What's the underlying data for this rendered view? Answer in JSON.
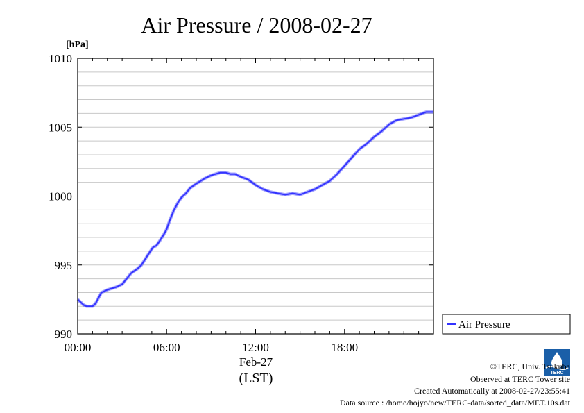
{
  "chart_data": {
    "type": "line",
    "title": "Air Pressure / 2008-02-27",
    "ylabel_unit": "[hPa]",
    "xlabel_date": "Feb-27",
    "xlabel_tz": "(LST)",
    "ylim": [
      990,
      1010
    ],
    "xlim_hours": [
      0,
      24
    ],
    "y_ticks": [
      "990",
      "995",
      "1000",
      "1005",
      "1010"
    ],
    "x_ticks": [
      "00:00",
      "06:00",
      "12:00",
      "18:00"
    ],
    "grid": true,
    "legend": {
      "placement": "right-outside",
      "entries": [
        "Air Pressure"
      ]
    },
    "series": [
      {
        "name": "Air Pressure",
        "color": "#3333ff",
        "x_hours": [
          0,
          0.2,
          0.4,
          0.6,
          0.8,
          1.0,
          1.2,
          1.4,
          1.6,
          1.8,
          2.0,
          2.3,
          2.6,
          3.0,
          3.3,
          3.6,
          4.0,
          4.3,
          4.6,
          4.9,
          5.1,
          5.3,
          5.5,
          5.8,
          6.0,
          6.2,
          6.5,
          6.8,
          7.0,
          7.3,
          7.6,
          8.0,
          8.3,
          8.6,
          9.0,
          9.3,
          9.6,
          10.0,
          10.3,
          10.6,
          11.0,
          11.5,
          12.0,
          12.5,
          13.0,
          13.5,
          14.0,
          14.5,
          15.0,
          15.5,
          16.0,
          16.5,
          17.0,
          17.5,
          18.0,
          18.5,
          19.0,
          19.5,
          20.0,
          20.5,
          21.0,
          21.5,
          22.0,
          22.5,
          23.0,
          23.5,
          24.0
        ],
        "values": [
          992.5,
          992.3,
          992.1,
          992.0,
          992.0,
          992.0,
          992.2,
          992.6,
          993.0,
          993.1,
          993.2,
          993.3,
          993.4,
          993.6,
          994.0,
          994.4,
          994.7,
          995.0,
          995.5,
          996.0,
          996.3,
          996.4,
          996.7,
          997.2,
          997.6,
          998.2,
          999.0,
          999.6,
          999.9,
          1000.2,
          1000.6,
          1000.9,
          1001.1,
          1001.3,
          1001.5,
          1001.6,
          1001.7,
          1001.7,
          1001.6,
          1001.6,
          1001.4,
          1001.2,
          1000.8,
          1000.5,
          1000.3,
          1000.2,
          1000.1,
          1000.2,
          1000.1,
          1000.3,
          1000.5,
          1000.8,
          1001.1,
          1001.6,
          1002.2,
          1002.8,
          1003.4,
          1003.8,
          1004.3,
          1004.7,
          1005.2,
          1005.5,
          1005.6,
          1005.7,
          1005.9,
          1006.1,
          1006.1
        ]
      }
    ]
  },
  "footer": {
    "copyright": "©TERC, Univ. Tsukuba",
    "site": "Observed at TERC Tower site",
    "created": "Created Automatically at 2008-02-27/23:55:41",
    "source": "Data source : /home/hojyo/new/TERC-data/sorted_data/MET.10s.dat"
  },
  "logo_text": "TERC",
  "colors": {
    "line": "#3333ff",
    "grid": "#c8c8c8",
    "logo": "#1a5fa8"
  }
}
